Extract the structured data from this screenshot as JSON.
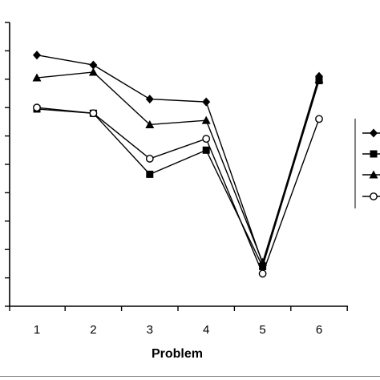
{
  "chart_data": {
    "type": "line",
    "categories": [
      "1",
      "2",
      "3",
      "4",
      "5",
      "6"
    ],
    "xlabel": "Problem",
    "ylabel": "",
    "ylim": [
      0,
      10
    ],
    "yticks": [
      0,
      1,
      2,
      3,
      4,
      5,
      6,
      7,
      8,
      9,
      10
    ],
    "grid": false,
    "legend_position": "right",
    "series": [
      {
        "marker": "diamond",
        "values": [
          8.85,
          8.5,
          7.3,
          7.2,
          1.5,
          8.1
        ]
      },
      {
        "marker": "square",
        "values": [
          6.95,
          6.8,
          4.65,
          5.5,
          1.4,
          7.95
        ]
      },
      {
        "marker": "triangle",
        "values": [
          8.05,
          8.25,
          6.4,
          6.55,
          1.55,
          8.0
        ]
      },
      {
        "marker": "circle",
        "values": [
          7.0,
          6.8,
          5.2,
          5.9,
          1.15,
          6.6
        ]
      }
    ]
  },
  "colors": {
    "line": "#000000",
    "background": "#ffffff"
  }
}
